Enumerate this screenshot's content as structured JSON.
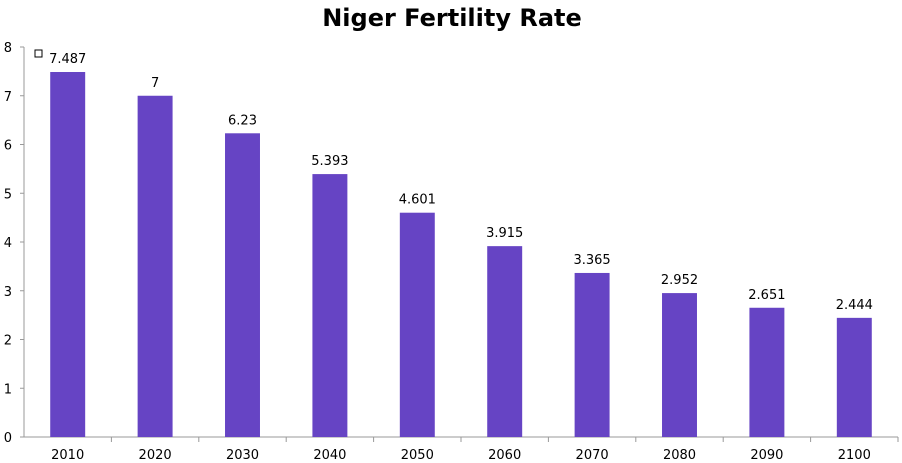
{
  "chart_data": {
    "type": "bar",
    "title": "Niger Fertility Rate",
    "xlabel": "",
    "ylabel": "",
    "categories": [
      "2010",
      "2020",
      "2030",
      "2040",
      "2050",
      "2060",
      "2070",
      "2080",
      "2090",
      "2100"
    ],
    "values": [
      7.487,
      7,
      6.23,
      5.393,
      4.601,
      3.915,
      3.365,
      2.952,
      2.651,
      2.444
    ],
    "data_labels": [
      "7.487",
      "7",
      "6.23",
      "5.393",
      "4.601",
      "3.915",
      "3.365",
      "2.952",
      "2.651",
      "2.444"
    ],
    "y_ticks": [
      "0",
      "1",
      "2",
      "3",
      "4",
      "5",
      "6",
      "7",
      "8"
    ],
    "ylim": [
      0,
      8
    ],
    "grid": false,
    "legend": "none",
    "bar_color": "#6644c4"
  }
}
